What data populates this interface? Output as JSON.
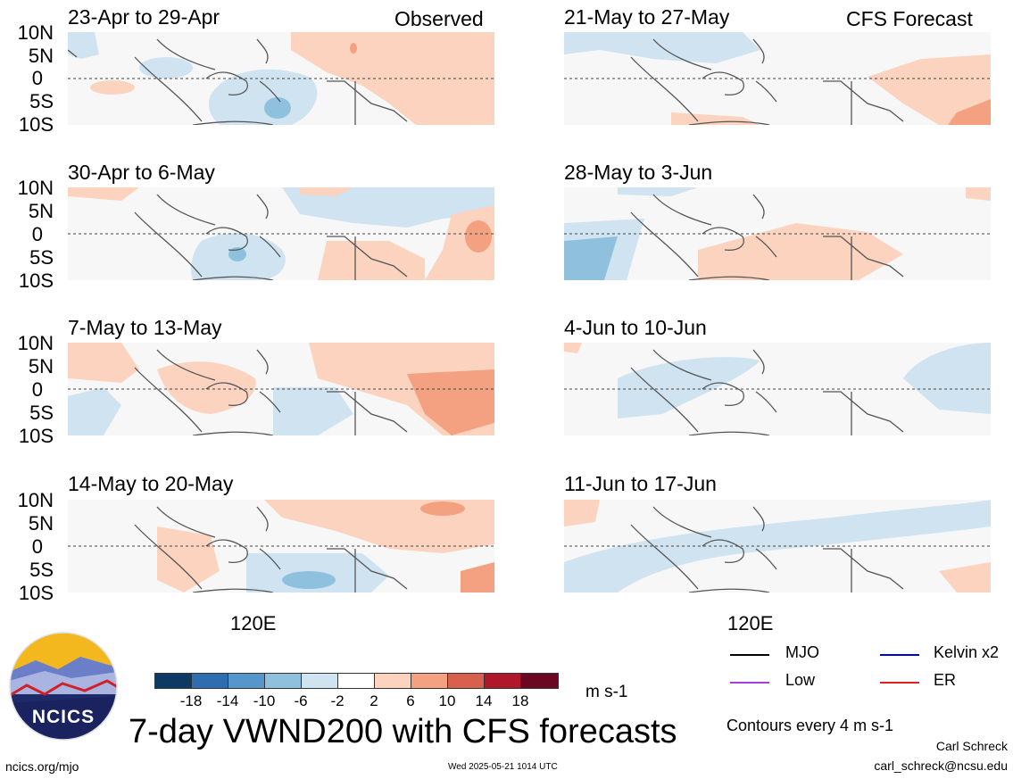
{
  "panels": [
    {
      "title": "23-Apr to 29-Apr",
      "tag": "Observed"
    },
    {
      "title": "30-Apr to 6-May",
      "tag": ""
    },
    {
      "title": "7-May to 13-May",
      "tag": ""
    },
    {
      "title": "14-May to 20-May",
      "tag": ""
    },
    {
      "title": "21-May to 27-May",
      "tag": "CFS Forecast"
    },
    {
      "title": "28-May to 3-Jun",
      "tag": ""
    },
    {
      "title": "4-Jun to 10-Jun",
      "tag": ""
    },
    {
      "title": "11-Jun to 17-Jun",
      "tag": ""
    }
  ],
  "lat_labels": [
    "10N",
    "5N",
    "0",
    "5S",
    "10S"
  ],
  "lon_label": "120E",
  "colorbar": {
    "ticks": [
      "-18",
      "-14",
      "-10",
      "-6",
      "-2",
      "2",
      "6",
      "10",
      "14",
      "18"
    ],
    "colors": [
      "#0d3a64",
      "#2e6db1",
      "#5596cc",
      "#8fc1de",
      "#cfe3f1",
      "#ffffff",
      "#fbd3bf",
      "#f4a182",
      "#d9604f",
      "#b1172b",
      "#6b0720"
    ],
    "units": "m s-1"
  },
  "legend": {
    "mjo": "MJO",
    "kelvin": "Kelvin x2",
    "low": "Low",
    "er": "ER",
    "colors": {
      "mjo": "#000000",
      "kelvin": "#0000cc",
      "low": "#a040e0",
      "er": "#e02020"
    }
  },
  "logo": {
    "text": "NCICS"
  },
  "main_title": "7-day VWND200 with CFS forecasts",
  "contours_note": "Contours every 4 m s-1",
  "author": "Carl Schreck",
  "email": "carl_schreck@ncsu.edu",
  "url": "ncics.org/mjo",
  "timestamp": "Wed 2025-05-21 1014 UTC"
}
